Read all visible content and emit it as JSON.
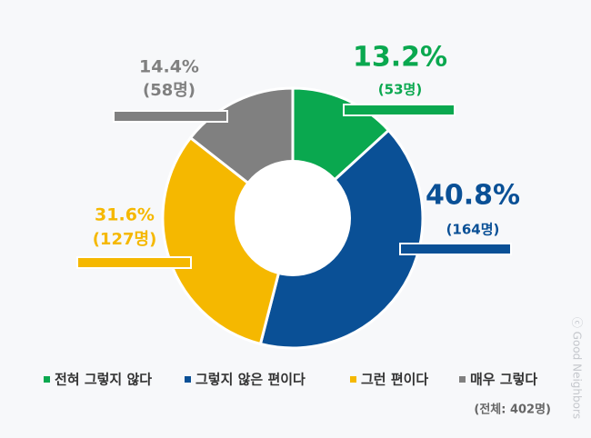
{
  "chart_data": {
    "type": "donut",
    "categories": [
      "전혀 그렇지 않다",
      "그렇지 않은 편이다",
      "그런 편이다",
      "매우 그렇다"
    ],
    "values": [
      13.2,
      40.8,
      31.6,
      14.4
    ],
    "value_labels": [
      "13.2%",
      "40.8%",
      "31.6%",
      "14.4%"
    ],
    "counts": [
      53,
      164,
      127,
      58
    ],
    "count_labels": [
      "(53명)",
      "(164명)",
      "(127명)",
      "(58명)"
    ],
    "colors": [
      "#0aa84f",
      "#0a5096",
      "#f5b800",
      "#808080"
    ],
    "total_label": "(전체: 402명)"
  },
  "watermark": "ⓒ Good Neighbors"
}
